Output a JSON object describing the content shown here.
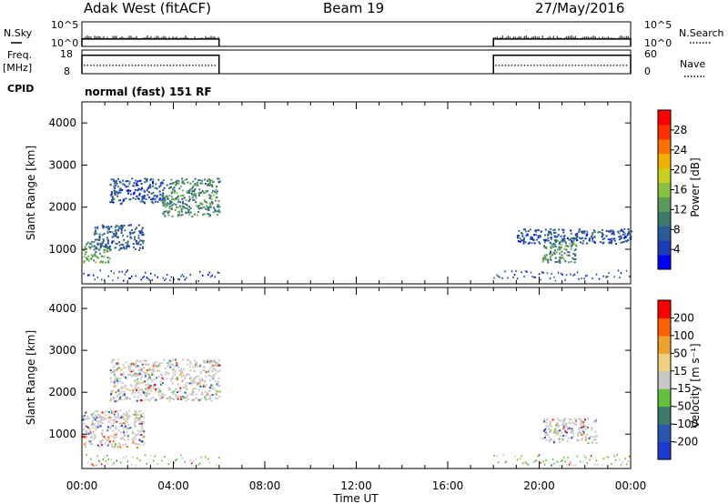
{
  "header": {
    "station": "Adak West (fitACF)",
    "beam": "Beam 19",
    "date": "27/May/2016"
  },
  "summary": {
    "nsky_label": "N.Sky",
    "nsky_ticks": [
      "10^5",
      "10^0"
    ],
    "nsearch_label": "N.Search",
    "nsearch_ticks": [
      "10^5",
      "10^0"
    ],
    "freq_label": "Freq.",
    "freq_unit": "[MHz]",
    "freq_ticks": [
      "18",
      "8"
    ],
    "nave_label": "Nave",
    "nave_ticks": [
      "60",
      "0"
    ],
    "cpid_label": "CPID",
    "cpid_value": "normal (fast) 151 RF",
    "freq_level": 0.78,
    "nave_level": 0.35,
    "nsky_level": 0.3
  },
  "axes": {
    "x_ticks": [
      "00:00",
      "04:00",
      "08:00",
      "12:00",
      "16:00",
      "20:00",
      "00:00"
    ],
    "x_label": "Time UT",
    "y_label": "Slant Range [km]",
    "y_ticks": [
      "4000",
      "3000",
      "2000",
      "1000"
    ],
    "y_tick_values": [
      4000,
      3000,
      2000,
      1000
    ],
    "ylim": [
      180,
      4500
    ],
    "xlim": [
      0,
      24
    ]
  },
  "power_scale": {
    "label": "Power [dB]",
    "ticks": [
      "28",
      "24",
      "20",
      "16",
      "12",
      "8",
      "4"
    ],
    "colors": [
      "#0000ff",
      "#1b3cb4",
      "#2a5a9a",
      "#3d7a6a",
      "#5a9a5a",
      "#88c040",
      "#c8d020",
      "#f0b000",
      "#ff7000",
      "#ff3000",
      "#ff0000"
    ]
  },
  "velocity_scale": {
    "label": "Velocity [m s⁻¹]",
    "ticks": [
      "200",
      "100",
      "50",
      "15",
      "-15",
      "-50",
      "-100",
      "-200"
    ],
    "colors": [
      "#1d3bd0",
      "#2a56b0",
      "#3d7a6a",
      "#66c040",
      "#c8c8c8",
      "#f0d080",
      "#f0a030",
      "#ff6000",
      "#ff0000"
    ]
  },
  "chart_data": {
    "type": "heatmap",
    "title": "Adak West (fitACF)   Beam 19   27/May/2016",
    "xlabel": "Time UT",
    "ylabel": "Slant Range [km]",
    "xlim": [
      0,
      24
    ],
    "ylim": [
      180,
      4500
    ],
    "data_gaps_hours": [
      [
        6.0,
        18.0
      ]
    ],
    "echo_regions": [
      {
        "panel": "power",
        "t_start": 0.0,
        "t_end": 1.2,
        "range_start": 700,
        "range_end": 1200,
        "power_db": 12
      },
      {
        "panel": "power",
        "t_start": 0.5,
        "t_end": 2.7,
        "range_start": 1000,
        "range_end": 1600,
        "power_db": 6
      },
      {
        "panel": "power",
        "t_start": 1.2,
        "t_end": 3.6,
        "range_start": 2100,
        "range_end": 2700,
        "power_db": 5
      },
      {
        "panel": "power",
        "t_start": 3.5,
        "t_end": 6.0,
        "range_start": 1800,
        "range_end": 2700,
        "power_db": 10
      },
      {
        "panel": "power",
        "t_start": 20.1,
        "t_end": 21.6,
        "range_start": 700,
        "range_end": 1300,
        "power_db": 10
      },
      {
        "panel": "power",
        "t_start": 19.0,
        "t_end": 24.0,
        "range_start": 1150,
        "range_end": 1500,
        "power_db": 5
      },
      {
        "panel": "velocity",
        "t_start": 0.0,
        "t_end": 2.7,
        "range_start": 700,
        "range_end": 1600,
        "velocity_ms": 0
      },
      {
        "panel": "velocity",
        "t_start": 1.2,
        "t_end": 6.0,
        "range_start": 1800,
        "range_end": 2800,
        "velocity_ms": 0
      },
      {
        "panel": "velocity",
        "t_start": 20.1,
        "t_end": 22.5,
        "range_start": 800,
        "range_end": 1400,
        "velocity_ms": 0
      }
    ]
  }
}
